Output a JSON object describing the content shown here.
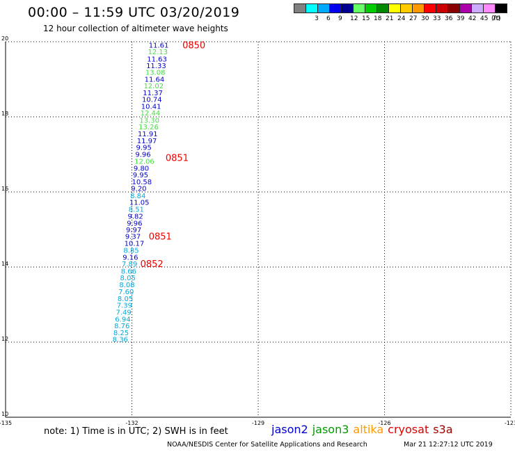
{
  "header": {
    "title": "00:00 – 11:59 UTC 03/20/2019",
    "subtitle": "12 hour collection of altimeter wave heights"
  },
  "legend": {
    "unit": "(ft)",
    "bins": [
      {
        "color": "#808080",
        "label": ""
      },
      {
        "color": "#00ffff",
        "label": "3"
      },
      {
        "color": "#00aaff",
        "label": "6"
      },
      {
        "color": "#0000ee",
        "label": "9"
      },
      {
        "color": "#000090",
        "label": "12"
      },
      {
        "color": "#66ff66",
        "label": "15"
      },
      {
        "color": "#00cc00",
        "label": "18"
      },
      {
        "color": "#008800",
        "label": "21"
      },
      {
        "color": "#ffff00",
        "label": "24"
      },
      {
        "color": "#ffcc00",
        "label": "27"
      },
      {
        "color": "#ff9900",
        "label": "30"
      },
      {
        "color": "#ff0000",
        "label": "33"
      },
      {
        "color": "#cc0000",
        "label": "36"
      },
      {
        "color": "#880000",
        "label": "39"
      },
      {
        "color": "#aa00aa",
        "label": "42"
      },
      {
        "color": "#ccaaff",
        "label": "45"
      },
      {
        "color": "#ff88ff",
        "label": "70"
      },
      {
        "color": "#000000",
        "label": ""
      }
    ]
  },
  "footer": {
    "note": "note: 1) Time is in UTC; 2) SWH is in feet",
    "satellites": [
      {
        "name": "jason2",
        "color": "#0000cc"
      },
      {
        "name": "jason3",
        "color": "#009900"
      },
      {
        "name": "altika",
        "color": "#ff9900"
      },
      {
        "name": "cryosat",
        "color": "#dd0000"
      },
      {
        "name": "s3a",
        "color": "#990000"
      }
    ],
    "credit": "NOAA/NESDIS Center for Satellite Applications and Research",
    "timestamp": "Mar 21 12:27:12 UTC 2019"
  },
  "chart_data": {
    "type": "scatter",
    "title": "00:00 – 11:59 UTC 03/20/2019",
    "subtitle": "12 hour collection of altimeter wave heights",
    "xlim": [
      -135,
      -123
    ],
    "ylim": [
      10,
      20
    ],
    "x_ticks": [
      -135,
      -132,
      -129,
      -126,
      -123
    ],
    "x_tick_labels": [
      "-135",
      "-132",
      "-129",
      "-126",
      "-123"
    ],
    "y_ticks": [
      10,
      12,
      14,
      16,
      18,
      20
    ],
    "y_tick_labels": [
      "10",
      "12",
      "14",
      "16",
      "18",
      "20"
    ],
    "grid": true,
    "points": [
      {
        "x": -131.6,
        "y": 19.92,
        "value": "11.61",
        "color": "#0000cc"
      },
      {
        "x": -131.62,
        "y": 19.74,
        "value": "12.13",
        "color": "#44dd44"
      },
      {
        "x": -131.64,
        "y": 19.55,
        "value": "11.63",
        "color": "#0000cc"
      },
      {
        "x": -131.66,
        "y": 19.37,
        "value": "11.33",
        "color": "#0000cc"
      },
      {
        "x": -131.68,
        "y": 19.19,
        "value": "13.08",
        "color": "#44dd44"
      },
      {
        "x": -131.7,
        "y": 19.01,
        "value": "11.64",
        "color": "#0000cc"
      },
      {
        "x": -131.72,
        "y": 18.83,
        "value": "12.02",
        "color": "#44dd44"
      },
      {
        "x": -131.74,
        "y": 18.65,
        "value": "11.37",
        "color": "#0000cc"
      },
      {
        "x": -131.76,
        "y": 18.47,
        "value": "10.74",
        "color": "#0000cc"
      },
      {
        "x": -131.78,
        "y": 18.29,
        "value": "10.41",
        "color": "#0000cc"
      },
      {
        "x": -131.8,
        "y": 18.11,
        "value": "12.44",
        "color": "#44dd44"
      },
      {
        "x": -131.82,
        "y": 17.92,
        "value": "13.30",
        "color": "#44dd44"
      },
      {
        "x": -131.84,
        "y": 17.74,
        "value": "13.26",
        "color": "#44dd44"
      },
      {
        "x": -131.86,
        "y": 17.56,
        "value": "11.91",
        "color": "#0000cc"
      },
      {
        "x": -131.88,
        "y": 17.37,
        "value": "11.97",
        "color": "#0000cc"
      },
      {
        "x": -131.9,
        "y": 17.19,
        "value": "9.95",
        "color": "#0000cc"
      },
      {
        "x": -131.92,
        "y": 17.01,
        "value": "9.96",
        "color": "#0000cc"
      },
      {
        "x": -131.94,
        "y": 16.82,
        "value": "12.06",
        "color": "#44dd44"
      },
      {
        "x": -131.96,
        "y": 16.64,
        "value": "9.80",
        "color": "#0000cc"
      },
      {
        "x": -131.98,
        "y": 16.46,
        "value": "9.95",
        "color": "#0000cc"
      },
      {
        "x": -132.0,
        "y": 16.28,
        "value": "10.58",
        "color": "#0000cc"
      },
      {
        "x": -132.02,
        "y": 16.1,
        "value": "9.20",
        "color": "#0000cc"
      },
      {
        "x": -132.04,
        "y": 15.91,
        "value": "8.84",
        "color": "#00aadd"
      },
      {
        "x": -132.06,
        "y": 15.73,
        "value": "11.05",
        "color": "#0000cc"
      },
      {
        "x": -132.08,
        "y": 15.55,
        "value": "8.51",
        "color": "#00aadd"
      },
      {
        "x": -132.1,
        "y": 15.36,
        "value": "9.82",
        "color": "#0000cc"
      },
      {
        "x": -132.12,
        "y": 15.18,
        "value": "9.96",
        "color": "#0000cc"
      },
      {
        "x": -132.14,
        "y": 15.0,
        "value": "9.97",
        "color": "#0000cc"
      },
      {
        "x": -132.16,
        "y": 14.82,
        "value": "9.37",
        "color": "#0000cc"
      },
      {
        "x": -132.18,
        "y": 14.64,
        "value": "10.17",
        "color": "#0000cc"
      },
      {
        "x": -132.2,
        "y": 14.45,
        "value": "8.85",
        "color": "#00aadd"
      },
      {
        "x": -132.22,
        "y": 14.27,
        "value": "9.16",
        "color": "#0000cc"
      },
      {
        "x": -132.24,
        "y": 14.09,
        "value": "7.89",
        "color": "#00aadd"
      },
      {
        "x": -132.26,
        "y": 13.9,
        "value": "8.66",
        "color": "#00aadd"
      },
      {
        "x": -132.28,
        "y": 13.72,
        "value": "8.05",
        "color": "#00aadd"
      },
      {
        "x": -132.3,
        "y": 13.54,
        "value": "8.08",
        "color": "#00aadd"
      },
      {
        "x": -132.32,
        "y": 13.35,
        "value": "7.60",
        "color": "#00aadd"
      },
      {
        "x": -132.34,
        "y": 13.17,
        "value": "8.05",
        "color": "#00aadd"
      },
      {
        "x": -132.36,
        "y": 12.99,
        "value": "7.39",
        "color": "#00aadd"
      },
      {
        "x": -132.38,
        "y": 12.81,
        "value": "7.49",
        "color": "#00aadd"
      },
      {
        "x": -132.4,
        "y": 12.62,
        "value": "6.94",
        "color": "#00aadd"
      },
      {
        "x": -132.42,
        "y": 12.44,
        "value": "8.76",
        "color": "#00aadd"
      },
      {
        "x": -132.44,
        "y": 12.26,
        "value": "8.25",
        "color": "#00aadd"
      },
      {
        "x": -132.46,
        "y": 12.08,
        "value": "8.36",
        "color": "#00aadd"
      }
    ],
    "time_labels": [
      {
        "x": -130.8,
        "y": 19.92,
        "text": "0850",
        "color": "#ee0000"
      },
      {
        "x": -131.2,
        "y": 16.92,
        "text": "0851",
        "color": "#ee0000"
      },
      {
        "x": -131.6,
        "y": 14.82,
        "text": "0851",
        "color": "#ee0000"
      },
      {
        "x": -131.8,
        "y": 14.09,
        "text": "0852",
        "color": "#ee0000"
      }
    ]
  }
}
